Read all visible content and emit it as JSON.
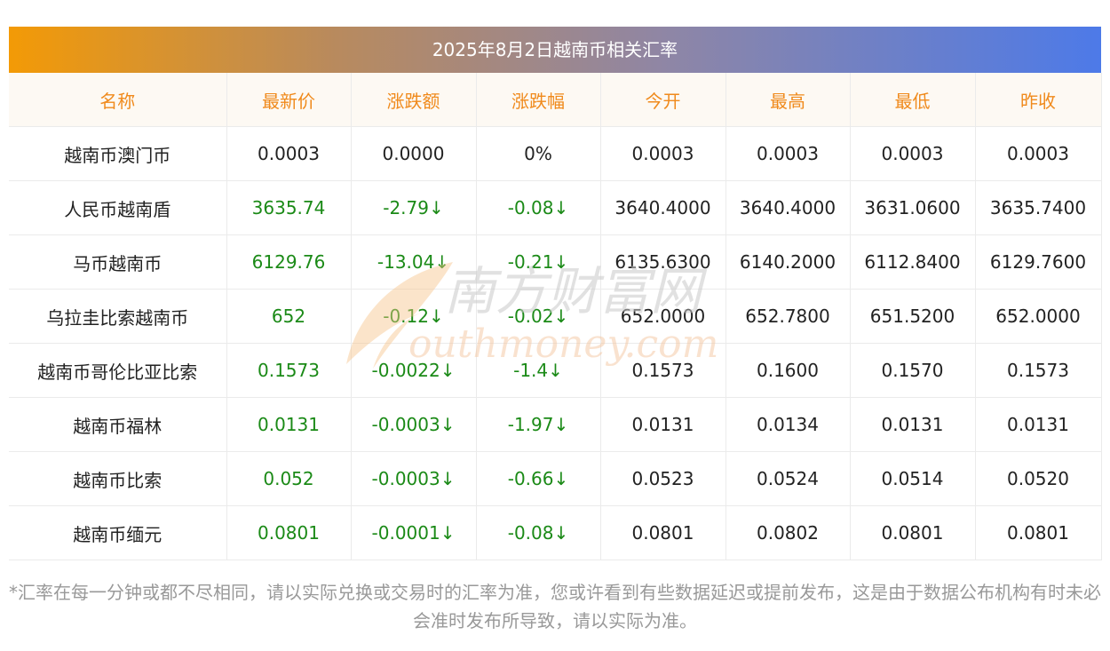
{
  "title": "2025年8月2日越南币相关汇率",
  "headers": [
    "名称",
    "最新价",
    "涨跌额",
    "涨跌幅",
    "今开",
    "最高",
    "最低",
    "昨收"
  ],
  "rows": [
    [
      "越南币澳门币",
      "0.0003",
      "0.0000",
      "0%",
      "0.0003",
      "0.0003",
      "0.0003",
      "0.0003"
    ],
    [
      "人民币越南盾",
      "3635.74",
      "-2.79↓",
      "-0.08↓",
      "3640.4000",
      "3640.4000",
      "3631.0600",
      "3635.7400"
    ],
    [
      "马币越南币",
      "6129.76",
      "-13.04↓",
      "-0.21↓",
      "6135.6300",
      "6140.2000",
      "6112.8400",
      "6129.7600"
    ],
    [
      "乌拉圭比索越南币",
      "652",
      "-0.12↓",
      "-0.02↓",
      "652.0000",
      "652.7800",
      "651.5200",
      "652.0000"
    ],
    [
      "越南币哥伦比亚比索",
      "0.1573",
      "-0.0022↓",
      "-1.4↓",
      "0.1573",
      "0.1600",
      "0.1570",
      "0.1573"
    ],
    [
      "越南币福林",
      "0.0131",
      "-0.0003↓",
      "-1.97↓",
      "0.0131",
      "0.0134",
      "0.0131",
      "0.0131"
    ],
    [
      "越南币比索",
      "0.052",
      "-0.0003↓",
      "-0.66↓",
      "0.0523",
      "0.0524",
      "0.0514",
      "0.0520"
    ],
    [
      "越南币缅元",
      "0.0801",
      "-0.0001↓",
      "-0.08↓",
      "0.0801",
      "0.0802",
      "0.0801",
      "0.0801"
    ]
  ],
  "note": "*汇率在每一分钟或都不尽相同，请以实际兑换或交易时的汇率为准，您或许看到有些数据延迟或提前发布，这是由于数据公布机构有时未必会准时发布所导致，请以实际为准。",
  "watermark": {
    "cn": "南方财富网",
    "en": "outhmoney.com"
  },
  "colors": {
    "header_text": "#f08a1c",
    "change_text": "#1b8a17",
    "title_gradient_start": "#f39a06",
    "title_gradient_end": "#4d7ae8"
  }
}
